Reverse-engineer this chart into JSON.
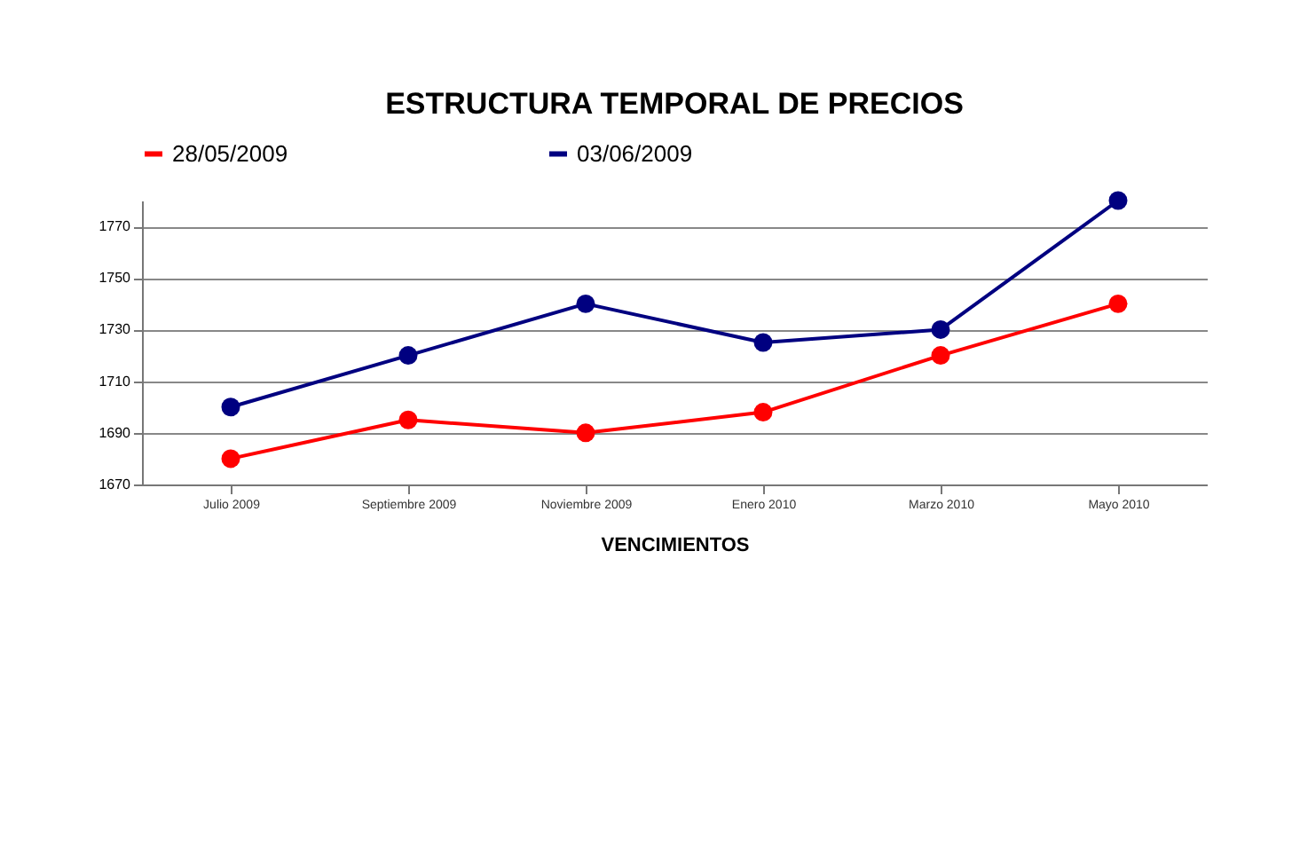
{
  "chart_data": {
    "type": "line",
    "title": "ESTRUCTURA TEMPORAL DE PRECIOS",
    "xlabel": "VENCIMIENTOS",
    "categories": [
      "Julio 2009",
      "Septiembre 2009",
      "Noviembre 2009",
      "Enero 2010",
      "Marzo 2010",
      "Mayo 2010"
    ],
    "series": [
      {
        "name": "28/05/2009",
        "color": "#ff0000",
        "values": [
          1680,
          1695,
          1690,
          1698,
          1720,
          1740
        ]
      },
      {
        "name": "03/06/2009",
        "color": "#000080",
        "values": [
          1700,
          1720,
          1740,
          1725,
          1730,
          1780
        ]
      }
    ],
    "ylim": [
      1670,
      1780
    ],
    "yticks": [
      1670,
      1690,
      1710,
      1730,
      1750,
      1770
    ],
    "grid": "y",
    "legend": "top",
    "marker": "circle",
    "line_style": "solid"
  }
}
